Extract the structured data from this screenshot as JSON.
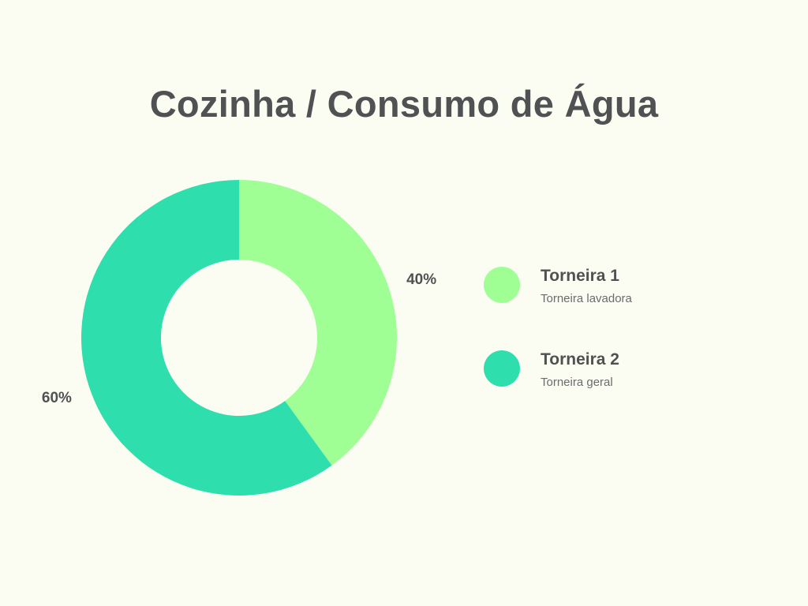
{
  "title": "Cozinha / Consumo de Água",
  "chart_data": {
    "type": "pie",
    "variant": "donut",
    "title": "Cozinha / Consumo de Água",
    "categories": [
      "Torneira 1",
      "Torneira 2"
    ],
    "values": [
      40,
      60
    ],
    "labels": [
      "40%",
      "60%"
    ],
    "descriptions": [
      "Torneira lavadora",
      "Torneira geral"
    ],
    "colors": [
      "#9fff95",
      "#2edfad"
    ],
    "legend_position": "right"
  },
  "legend": [
    {
      "name": "Torneira 1",
      "description": "Torneira lavadora",
      "color": "#9fff95"
    },
    {
      "name": "Torneira 2",
      "description": "Torneira geral",
      "color": "#2edfad"
    }
  ]
}
